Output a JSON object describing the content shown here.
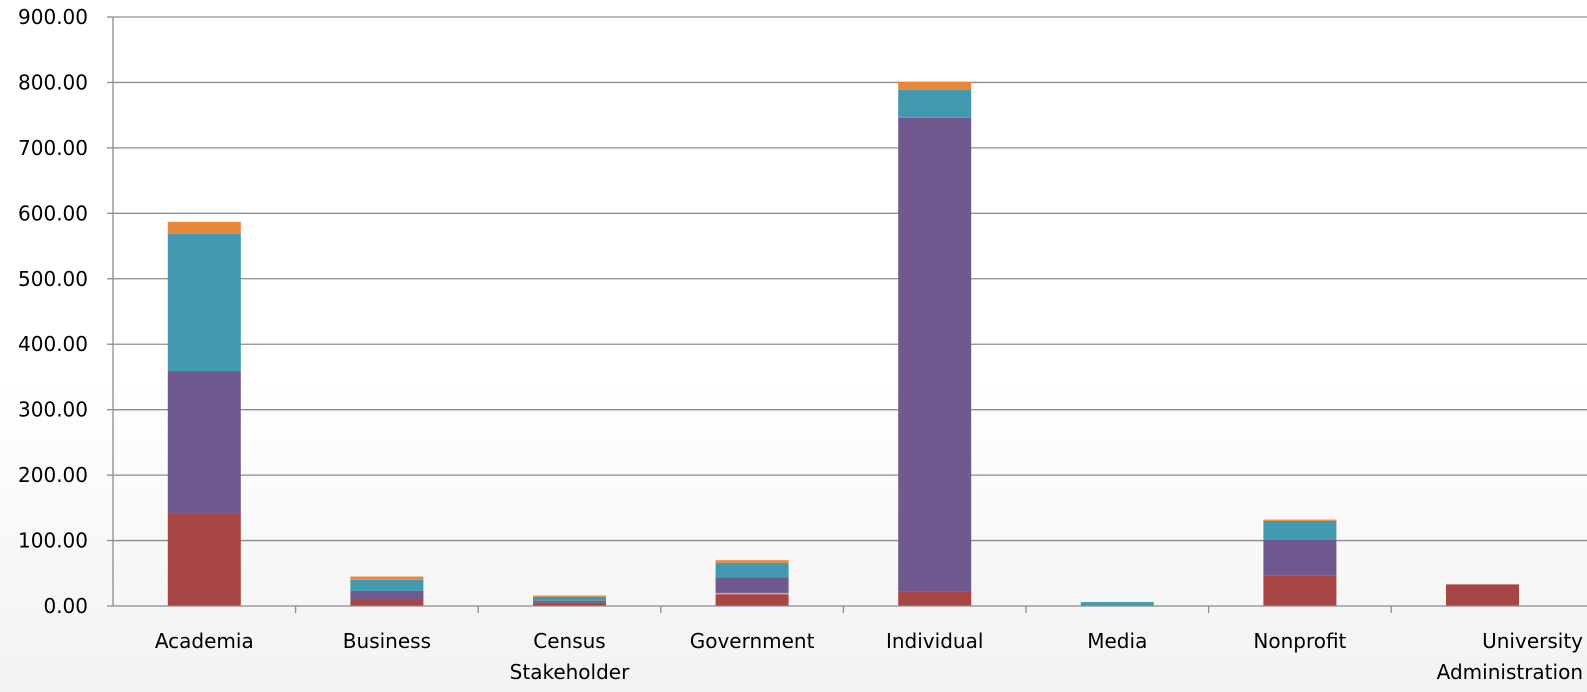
{
  "chart_data": {
    "type": "bar",
    "stacked": true,
    "categories": [
      [
        "Academia"
      ],
      [
        "Business"
      ],
      [
        "Census",
        "Stakeholder"
      ],
      [
        "Government"
      ],
      [
        "Individual"
      ],
      [
        "Media"
      ],
      [
        "Nonprofit"
      ],
      [
        "University",
        "Administration"
      ]
    ],
    "series": [
      {
        "color": "#A84646",
        "values": [
          142,
          10,
          5,
          18,
          22,
          0,
          47,
          33
        ]
      },
      {
        "color": "#C8B070",
        "values": [
          0,
          0,
          0,
          2,
          0,
          0,
          0,
          0
        ]
      },
      {
        "color": "#70598F",
        "values": [
          217,
          13,
          3,
          24,
          724,
          0,
          54,
          0
        ]
      },
      {
        "color": "#4299B0",
        "values": [
          210,
          17,
          6,
          22,
          43,
          6,
          29,
          0
        ]
      },
      {
        "color": "#E8873A",
        "values": [
          18,
          5,
          2,
          4,
          12,
          0,
          2,
          0
        ]
      }
    ],
    "title": "",
    "xlabel": "",
    "ylabel": "",
    "ylim": [
      0,
      900
    ],
    "yticks": [
      "0.00",
      "100.00",
      "200.00",
      "300.00",
      "400.00",
      "500.00",
      "600.00",
      "700.00",
      "800.00",
      "900.00"
    ],
    "grid": true,
    "legend": "none"
  }
}
